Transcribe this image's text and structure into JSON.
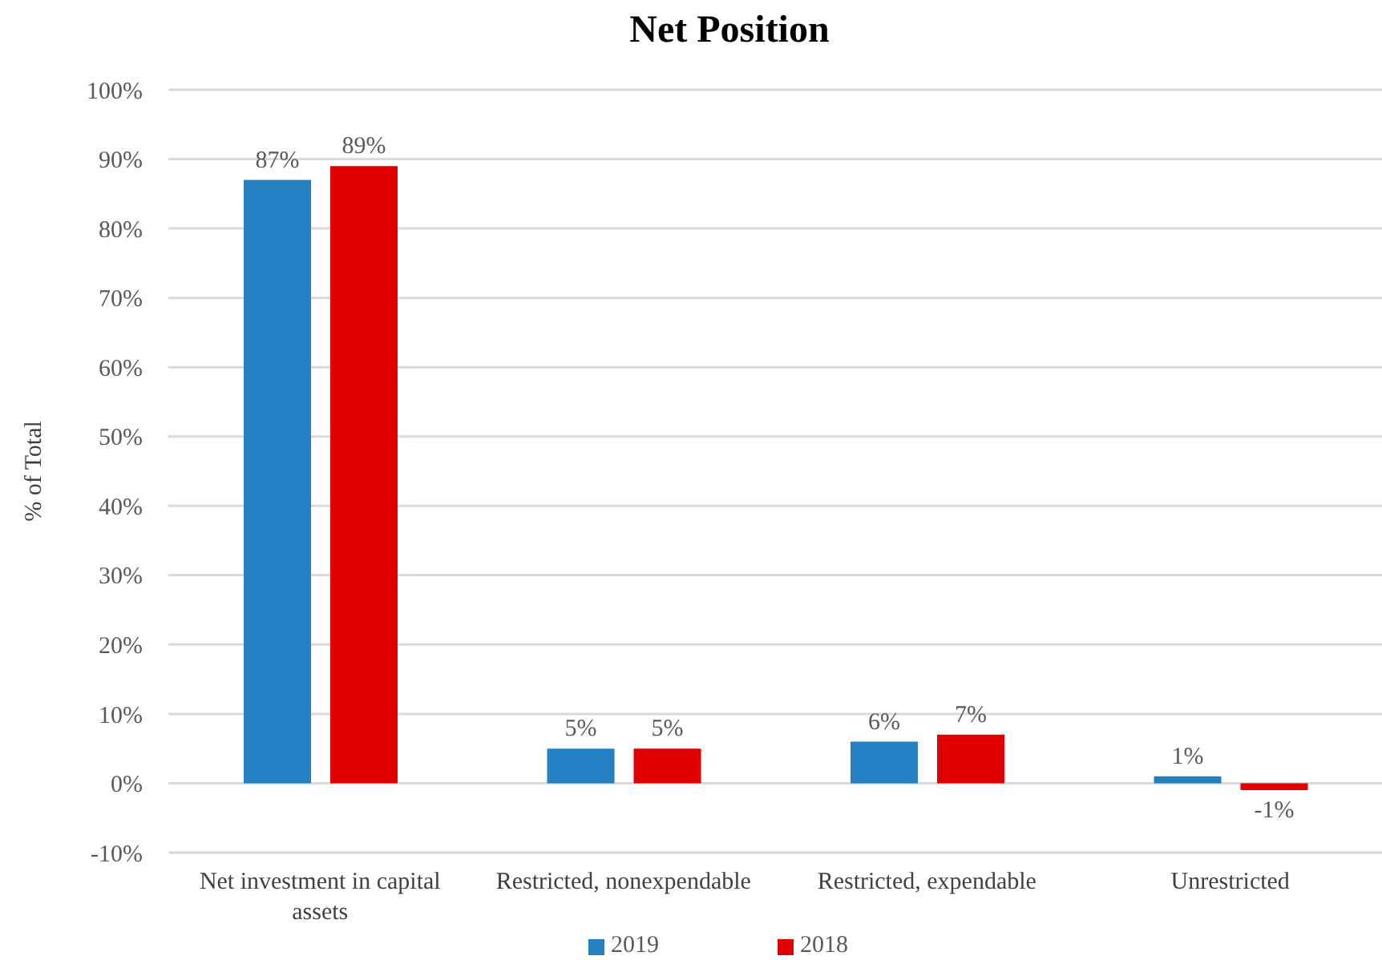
{
  "chart_data": {
    "type": "bar",
    "title": "Net Position",
    "ylabel": "% of Total",
    "categories": [
      "Net investment in capital assets",
      "Restricted, nonexpendable",
      "Restricted, expendable",
      "Unrestricted"
    ],
    "series": [
      {
        "name": "2019",
        "color": "#2580c3",
        "values": [
          87,
          5,
          6,
          1
        ],
        "value_labels": [
          "87%",
          "5%",
          "6%",
          "1%"
        ]
      },
      {
        "name": "2018",
        "color": "#e00000",
        "values": [
          89,
          5,
          7,
          -1
        ],
        "value_labels": [
          "89%",
          "5%",
          "7%",
          "-1%"
        ]
      }
    ],
    "ylim": [
      -10,
      100
    ],
    "yticks": [
      {
        "value": -10,
        "label": "-10%"
      },
      {
        "value": 0,
        "label": "0%"
      },
      {
        "value": 10,
        "label": "10%"
      },
      {
        "value": 20,
        "label": "20%"
      },
      {
        "value": 30,
        "label": "30%"
      },
      {
        "value": 40,
        "label": "40%"
      },
      {
        "value": 50,
        "label": "50%"
      },
      {
        "value": 60,
        "label": "60%"
      },
      {
        "value": 70,
        "label": "70%"
      },
      {
        "value": 80,
        "label": "80%"
      },
      {
        "value": 90,
        "label": "90%"
      },
      {
        "value": 100,
        "label": "100%"
      }
    ],
    "grid": "y",
    "legend": "bottom"
  }
}
